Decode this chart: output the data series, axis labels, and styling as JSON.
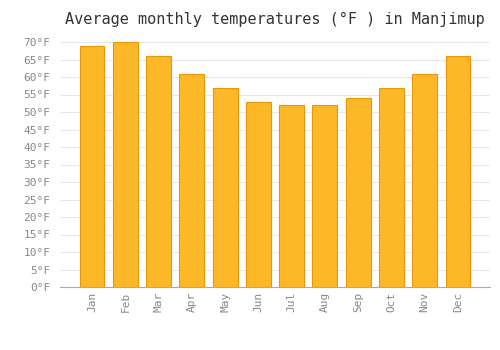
{
  "title": "Average monthly temperatures (°F ) in Manjimup",
  "months": [
    "Jan",
    "Feb",
    "Mar",
    "Apr",
    "May",
    "Jun",
    "Jul",
    "Aug",
    "Sep",
    "Oct",
    "Nov",
    "Dec"
  ],
  "values": [
    69,
    70,
    66,
    61,
    57,
    53,
    52,
    52,
    54,
    57,
    61,
    66
  ],
  "bar_color": "#FDB827",
  "bar_edge_color": "#E8960A",
  "background_color": "#ffffff",
  "grid_color": "#dddddd",
  "ylim": [
    0,
    72
  ],
  "yticks": [
    0,
    5,
    10,
    15,
    20,
    25,
    30,
    35,
    40,
    45,
    50,
    55,
    60,
    65,
    70
  ],
  "title_fontsize": 11,
  "tick_fontsize": 8,
  "font_family": "monospace"
}
